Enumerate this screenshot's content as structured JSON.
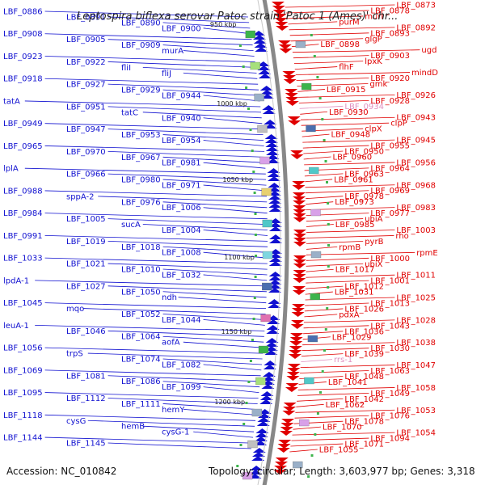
{
  "title": "Leptospira biflexa serovar Patoc strain 'Patoc 1 (Ames)' chr...",
  "accession_text": "Accession: NC_010842",
  "summary_text": "Topology: circular; Length: 3,603,977 bp; Genes: 3,318",
  "colors": {
    "forward_strand": "#1010d0",
    "reverse_strand": "#e00000",
    "backbone": "#888888",
    "rna_gene": "#e090c0",
    "tick_label": "#222222"
  },
  "icons": {
    "forward_gene_arrow": "forward-gene-arrow",
    "reverse_gene_arrow": "reverse-gene-arrow"
  },
  "ticks": [
    "950 kbp",
    "1000 kbp",
    "1050 kbp",
    "1100 kbp",
    "1150 kbp",
    "1200 kbp"
  ],
  "left_labels": [
    "LBF_0886",
    "LBF_0891",
    "LBF_0890",
    "LBF_0900",
    "LBF_0908",
    "LBF_0905",
    "LBF_0909",
    "murA",
    "LBF_0923",
    "LBF_0922",
    "fliI",
    "fliJ",
    "LBF_0918",
    "LBF_0927",
    "LBF_0929",
    "LBF_0944",
    "tatA",
    "LBF_0951",
    "tatC",
    "LBF_0940",
    "LBF_0949",
    "LBF_0947",
    "LBF_0953",
    "LBF_0954",
    "LBF_0965",
    "LBF_0970",
    "LBF_0967",
    "LBF_0981",
    "lplA",
    "LBF_0966",
    "LBF_0980",
    "LBF_0971",
    "LBF_0988",
    "sppA-2",
    "LBF_0976",
    "LBF_1006",
    "LBF_0984",
    "LBF_1005",
    "sucA",
    "LBF_1004",
    "LBF_0991",
    "LBF_1019",
    "LBF_1018",
    "LBF_1008",
    "LBF_1033",
    "LBF_1021",
    "LBF_1010",
    "LBF_1032",
    "lpdA-1",
    "LBF_1027",
    "LBF_1050",
    "ndh",
    "LBF_1045",
    "mqo",
    "LBF_1052",
    "LBF_1044",
    "leuA-1",
    "LBF_1046",
    "LBF_1064",
    "aofA",
    "LBF_1056",
    "trpS",
    "LBF_1074",
    "LBF_1082",
    "LBF_1069",
    "LBF_1081",
    "LBF_1086",
    "LBF_1099",
    "LBF_1095",
    "LBF_1112",
    "LBF_1111",
    "hemY",
    "LBF_1118",
    "cysG",
    "hemB",
    "cysG-1",
    "LBF_1144",
    "LBF_1145"
  ],
  "right_labels": [
    "LBF_0873",
    "LBF_0878",
    "murI",
    "purM",
    "LBF_0892",
    "LBF_0893",
    "glgP",
    "LBF_0898",
    "ugd",
    "LBF_0903",
    "lpxK",
    "flhF",
    "mindD",
    "LBF_0920",
    "gmk",
    "LBF_0915",
    "LBF_0926",
    "LBF_0928",
    "LBF_0934",
    "LBF_0930",
    "LBF_0943",
    "clpP",
    "clpX",
    "LBF_0948",
    "LBF_0945",
    "LBF_0955",
    "LBF_0950",
    "LBF_0960",
    "LBF_0956",
    "LBF_0964",
    "LBF_0963",
    "LBF_0961",
    "LBF_0968",
    "LBF_0969",
    "LBF_0978",
    "LBF_0973",
    "LBF_0983",
    "LBF_0977",
    "ubiA",
    "LBF_0985",
    "LBF_1003",
    "rho",
    "pyrB",
    "rpmB",
    "rpmE",
    "LBF_1000",
    "ubiX",
    "LBF_1017",
    "LBF_1011",
    "LBF_1001",
    "LBF_1012",
    "LBF_1031",
    "LBF_1025",
    "LBF_1013",
    "LBF_1026",
    "pdxA",
    "LBF_1028",
    "LBF_1043",
    "LBF_1036",
    "LBF_1029",
    "LBF_1038",
    "LBF_1030",
    "LBF_1039",
    "rrs-1",
    "LBF_1047",
    "LBF_1063",
    "LBF_1048",
    "LBF_1041",
    "LBF_1058",
    "LBF_1049",
    "LBF_1042",
    "LBF_1062",
    "LBF_1053",
    "LBF_1076",
    "LBF_1078",
    "LBF_1070",
    "LBF_1054",
    "LBF_1094",
    "LBF_1071",
    "LBF_1055"
  ]
}
